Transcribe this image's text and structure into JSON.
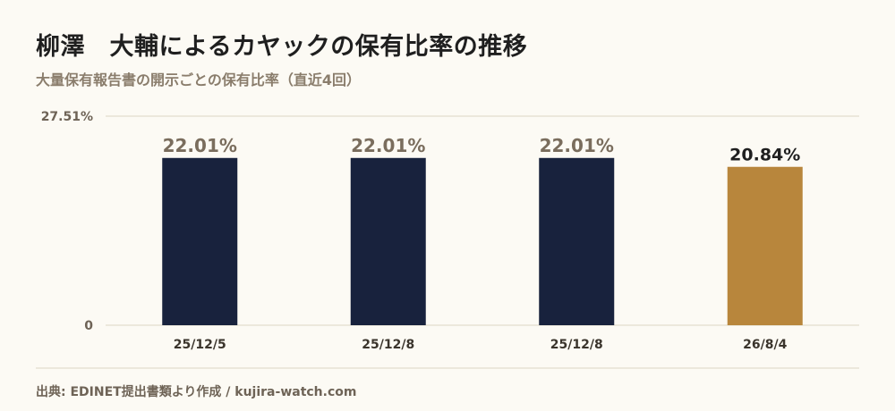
{
  "title": "柳澤　大輔によるカヤックの保有比率の推移",
  "subtitle": "大量保有報告書の開示ごとの保有比率（直近4回）",
  "source": "出典: EDINET提出書類より作成 / kujira-watch.com",
  "colors": {
    "bar_default": "#18223d",
    "bar_highlight": "#b8863c",
    "value_label_default": "#7a6d5d",
    "value_label_highlight": "#1f1f1f",
    "gridline": "#ddd6c4",
    "axis_text": "#6e6356"
  },
  "chart_data": {
    "type": "bar",
    "categories": [
      "25/12/5",
      "25/12/8",
      "25/12/8",
      "26/8/4"
    ],
    "values": [
      22.01,
      22.01,
      22.01,
      20.84
    ],
    "value_labels": [
      "22.01%",
      "22.01%",
      "22.01%",
      "20.84%"
    ],
    "highlight_index": 3,
    "ylim": [
      0,
      27.51
    ],
    "ytick_labels": [
      "0",
      "27.51%"
    ],
    "grid": true,
    "legend": "none",
    "title": "柳澤　大輔によるカヤックの保有比率の推移",
    "xlabel": "",
    "ylabel": ""
  }
}
